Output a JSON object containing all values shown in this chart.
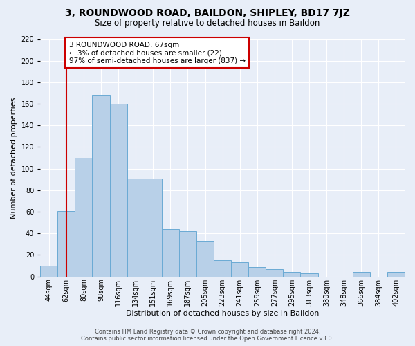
{
  "title": "3, ROUNDWOOD ROAD, BAILDON, SHIPLEY, BD17 7JZ",
  "subtitle": "Size of property relative to detached houses in Baildon",
  "xlabel": "Distribution of detached houses by size in Baildon",
  "ylabel": "Number of detached properties",
  "categories": [
    "44sqm",
    "62sqm",
    "80sqm",
    "98sqm",
    "116sqm",
    "134sqm",
    "151sqm",
    "169sqm",
    "187sqm",
    "205sqm",
    "223sqm",
    "241sqm",
    "259sqm",
    "277sqm",
    "295sqm",
    "313sqm",
    "330sqm",
    "348sqm",
    "366sqm",
    "384sqm",
    "402sqm"
  ],
  "values": [
    10,
    61,
    110,
    168,
    160,
    91,
    91,
    44,
    42,
    33,
    15,
    13,
    9,
    7,
    4,
    3,
    0,
    0,
    4,
    0,
    4
  ],
  "bar_color": "#b8d0e8",
  "bar_edge_color": "#6aaad4",
  "vline_x": 1,
  "vline_color": "#cc0000",
  "annotation_text": "3 ROUNDWOOD ROAD: 67sqm\n← 3% of detached houses are smaller (22)\n97% of semi-detached houses are larger (837) →",
  "annotation_box_color": "#ffffff",
  "annotation_box_edge": "#cc0000",
  "ylim": [
    0,
    220
  ],
  "yticks": [
    0,
    20,
    40,
    60,
    80,
    100,
    120,
    140,
    160,
    180,
    200,
    220
  ],
  "background_color": "#e8eef8",
  "plot_bg_color": "#e8eef8",
  "footer_line1": "Contains HM Land Registry data © Crown copyright and database right 2024.",
  "footer_line2": "Contains public sector information licensed under the Open Government Licence v3.0.",
  "title_fontsize": 10,
  "subtitle_fontsize": 8.5,
  "xlabel_fontsize": 8,
  "ylabel_fontsize": 8,
  "tick_fontsize": 7,
  "footer_fontsize": 6,
  "annotation_fontsize": 7.5
}
